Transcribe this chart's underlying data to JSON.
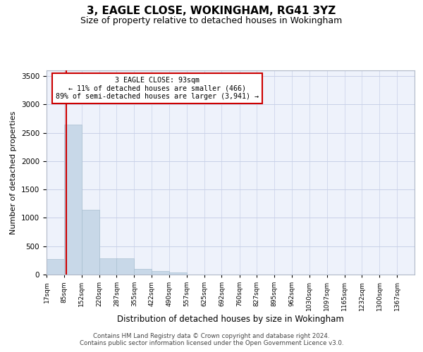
{
  "title": "3, EAGLE CLOSE, WOKINGHAM, RG41 3YZ",
  "subtitle": "Size of property relative to detached houses in Wokingham",
  "xlabel": "Distribution of detached houses by size in Wokingham",
  "ylabel": "Number of detached properties",
  "bar_color": "#c8d8e8",
  "bar_edge_color": "#a8bfd0",
  "background_color": "#eef2fb",
  "grid_color": "#c8d0e8",
  "property_line_color": "#cc0000",
  "property_size": 93,
  "property_label": "3 EAGLE CLOSE: 93sqm",
  "annotation_line1": "← 11% of detached houses are smaller (466)",
  "annotation_line2": "89% of semi-detached houses are larger (3,941) →",
  "bin_labels": [
    "17sqm",
    "85sqm",
    "152sqm",
    "220sqm",
    "287sqm",
    "355sqm",
    "422sqm",
    "490sqm",
    "557sqm",
    "625sqm",
    "692sqm",
    "760sqm",
    "827sqm",
    "895sqm",
    "962sqm",
    "1030sqm",
    "1097sqm",
    "1165sqm",
    "1232sqm",
    "1300sqm",
    "1367sqm"
  ],
  "bin_edges": [
    17,
    85,
    152,
    220,
    287,
    355,
    422,
    490,
    557,
    625,
    692,
    760,
    827,
    895,
    962,
    1030,
    1097,
    1165,
    1232,
    1300,
    1367
  ],
  "bar_heights": [
    270,
    2640,
    1140,
    280,
    280,
    95,
    60,
    35,
    0,
    0,
    0,
    0,
    0,
    0,
    0,
    0,
    0,
    0,
    0,
    0
  ],
  "ylim": [
    0,
    3600
  ],
  "yticks": [
    0,
    500,
    1000,
    1500,
    2000,
    2500,
    3000,
    3500
  ],
  "footer_line1": "Contains HM Land Registry data © Crown copyright and database right 2024.",
  "footer_line2": "Contains public sector information licensed under the Open Government Licence v3.0."
}
